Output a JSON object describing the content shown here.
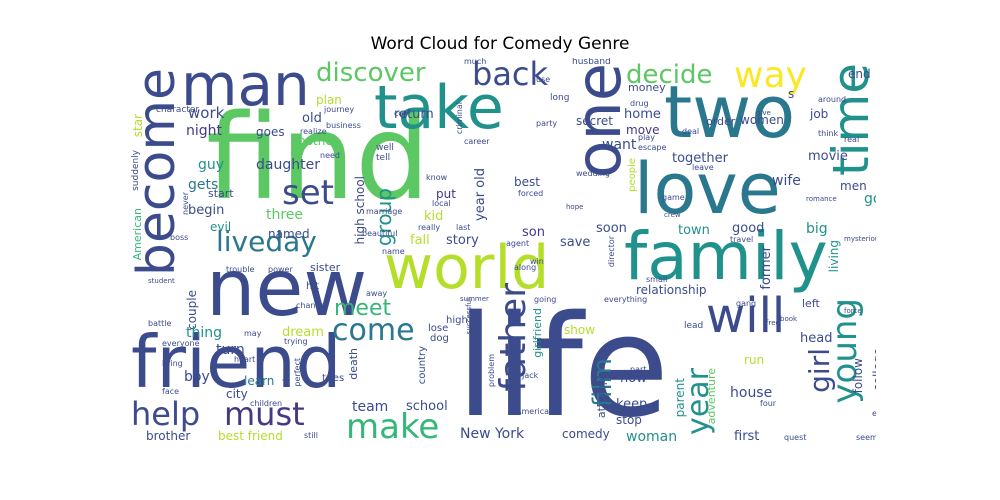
{
  "title": "Word Cloud for Comedy Genre",
  "colors": {
    "green": "#5cc863",
    "navy": "#3b4b8c",
    "teal": "#21918c",
    "tealdark": "#2a788e",
    "purple": "#443983",
    "lime": "#b5de2b",
    "yellow": "#fde725",
    "midgreen": "#35b779"
  },
  "words": {
    "find": "find",
    "life": "life",
    "friend": "friend",
    "new": "new",
    "world": "world",
    "family": "family",
    "love": "love",
    "two": "two",
    "take": "take",
    "man": "man",
    "become": "become",
    "one": "one",
    "time": "time",
    "way": "way",
    "will": "will",
    "young": "young",
    "father": "father",
    "liveday": "liveday",
    "set": "set",
    "back": "back",
    "discover": "discover",
    "decide": "decide",
    "help": "help",
    "must": "must",
    "make": "make",
    "come": "come",
    "meet": "meet",
    "girl": "girl",
    "year": "year",
    "film": "film",
    "group": "group",
    "daughter": "daughter",
    "work": "work",
    "night": "night",
    "guy": "guy",
    "gets": "gets",
    "begin": "begin",
    "three": "three",
    "named": "named",
    "evil": "evil",
    "kid": "kid",
    "story": "story",
    "fall": "fall",
    "son": "son",
    "put": "put",
    "best": "best",
    "soon": "soon",
    "town": "town",
    "good": "good",
    "big": "big",
    "former": "former",
    "living": "living",
    "go": "go",
    "men": "men",
    "movie": "movie",
    "together": "together",
    "wife": "wife",
    "want": "want",
    "home": "home",
    "move": "move",
    "secret": "secret",
    "women": "women",
    "order": "order",
    "job": "job",
    "end": "end",
    "s": "s",
    "relationship": "relationship",
    "couple": "couple",
    "thing": "thing",
    "turn": "turn",
    "boy": "boy",
    "learn": "learn",
    "city": "city",
    "brother": "brother",
    "best_friend": "best friend",
    "team": "team",
    "school": "school",
    "new_york": "New York",
    "comedy": "comedy",
    "woman": "woman",
    "keep": "keep",
    "now": "now",
    "stop": "stop",
    "house": "house",
    "first": "first",
    "parent": "parent",
    "adventure": "adventure",
    "head": "head",
    "follow": "follow",
    "college": "college",
    "little": "little",
    "dream": "dream",
    "mother": "mother",
    "old": "old",
    "plan": "plan",
    "return": "return",
    "high_school": "high school",
    "year_old": "year old",
    "save": "save",
    "show": "show",
    "attempt": "attempt",
    "girlfriend": "girlfriend",
    "run": "run",
    "star": "star",
    "american": "American",
    "goes": "goes",
    "start": "start",
    "sister": "sister",
    "money": "money",
    "lead": "lead",
    "left": "left",
    "hit": "hit",
    "death": "death",
    "high": "high",
    "lose": "lose",
    "dog": "dog",
    "tries": "tries",
    "country": "country",
    "suddenly": "suddenly",
    "character": "character",
    "journey": "journey",
    "realize": "realize",
    "business": "business",
    "need": "need",
    "marriage": "marriage",
    "well": "well",
    "tell": "tell",
    "beautiful": "beautiful",
    "really": "really",
    "last": "last",
    "local": "local",
    "know": "know",
    "cop": "cop",
    "criminal": "criminal",
    "career": "career",
    "party": "party",
    "forced": "forced",
    "wedding": "wedding",
    "people": "people",
    "much": "much",
    "husband": "husband",
    "use": "use",
    "long": "long",
    "drug": "drug",
    "play": "play",
    "escape": "escape",
    "deal": "deal",
    "give": "give",
    "around": "around",
    "real": "real",
    "think": "think",
    "romance": "romance",
    "mysterious": "mysterious",
    "crew": "crew",
    "game": "game",
    "leave": "leave",
    "hope": "hope",
    "small": "small",
    "director": "director",
    "gang": "gang",
    "force": "force",
    "agent": "agent",
    "win": "win",
    "along": "along",
    "summer": "summer",
    "successful": "successful",
    "going": "going",
    "everything": "everything",
    "boss": "boss",
    "student": "student",
    "battle": "battle",
    "everyone": "everyone",
    "bring": "bring",
    "face": "face",
    "children": "children",
    "try": "try",
    "perfect": "perfect",
    "heart": "heart",
    "trying": "trying",
    "change": "change",
    "trouble": "trouble",
    "power": "power",
    "name": "name",
    "away": "away",
    "problem": "problem",
    "jack": "Jack",
    "part": "part",
    "america": "America",
    "never": "never",
    "may": "may",
    "seem": "seem",
    "event": "event",
    "four": "four",
    "quest": "quest",
    "still": "still",
    "travel": "travel",
    "book": "book",
    "take_two": "take",
    "free": "free"
  }
}
